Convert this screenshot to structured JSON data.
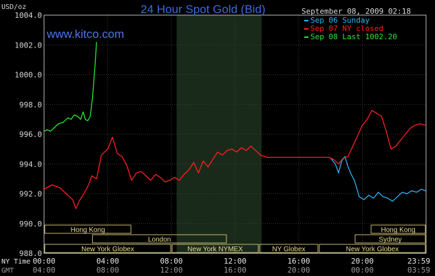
{
  "chart_data": {
    "type": "line",
    "title": "24 Hour Spot Gold (Bid)",
    "ylabel": "USD/oz",
    "ylim": [
      988.0,
      1004.0
    ],
    "yticks": [
      "1004.0",
      "1002.0",
      "1000.0",
      "998.0",
      "996.0",
      "994.0",
      "992.0",
      "990.0",
      "988.0"
    ],
    "timestamp": "September 08, 2009 02:18",
    "watermark": "www.kitco.com",
    "x_axis_rows": [
      {
        "label": "NY Time",
        "ticks": [
          "00:00",
          "04:00",
          "08:00",
          "12:00",
          "16:00",
          "20:00",
          "23:59"
        ]
      },
      {
        "label": "GMT",
        "ticks": [
          "04:00",
          "08:00",
          "12:00",
          "16:00",
          "20:00",
          "00:00",
          "03:59"
        ]
      }
    ],
    "legend": [
      {
        "name": "Sep 06 Sunday",
        "color": "#29b6f6"
      },
      {
        "name": "Sep 07 NY closed",
        "color": "#ff2020"
      },
      {
        "name": "Sep 08 Last 1002.20",
        "color": "#2ee82e"
      }
    ],
    "sessions": [
      {
        "name": "Hong Kong",
        "row": 0,
        "start": 0.0,
        "end": 5.5
      },
      {
        "name": "Hong Kong",
        "row": 0,
        "start": 20.5,
        "end": 24.0
      },
      {
        "name": "London",
        "row": 1,
        "start": 3.0,
        "end": 11.5
      },
      {
        "name": "Sydney",
        "row": 1,
        "start": 19.5,
        "end": 24.0
      },
      {
        "name": "New York Globex",
        "row": 2,
        "start": 0.0,
        "end": 8.0
      },
      {
        "name": "New York NYMEX",
        "row": 2,
        "start": 8.0,
        "end": 13.5
      },
      {
        "name": "NY Globex",
        "row": 2,
        "start": 13.5,
        "end": 17.25
      },
      {
        "name": "New York Globex",
        "row": 2,
        "start": 17.25,
        "end": 24.0
      }
    ],
    "highlight_range": [
      8.33,
      13.67
    ],
    "series": [
      {
        "name": "Sep 06 Sunday",
        "color": "#29b6f6",
        "x": [
          18.0,
          18.3,
          18.5,
          18.7,
          18.9,
          19.1,
          19.3,
          19.5,
          19.8,
          20.1,
          20.4,
          20.7,
          21.0,
          21.3,
          21.6,
          21.9,
          22.2,
          22.5,
          22.8,
          23.1,
          23.4,
          23.7,
          23.99
        ],
        "y": [
          994.4,
          994.0,
          993.4,
          994.2,
          994.5,
          993.8,
          993.3,
          992.9,
          991.8,
          991.6,
          991.9,
          991.7,
          992.1,
          991.8,
          991.7,
          991.5,
          991.8,
          992.1,
          992.0,
          992.2,
          992.1,
          992.3,
          992.2
        ]
      },
      {
        "name": "Sep 07 NY closed",
        "color": "#ff2020",
        "x": [
          0.0,
          0.5,
          1.0,
          1.5,
          1.8,
          2.0,
          2.2,
          2.5,
          2.8,
          3.0,
          3.3,
          3.6,
          4.0,
          4.3,
          4.6,
          4.9,
          5.2,
          5.5,
          5.8,
          6.1,
          6.4,
          6.7,
          7.0,
          7.3,
          7.6,
          7.9,
          8.2,
          8.5,
          8.8,
          9.1,
          9.4,
          9.7,
          10.0,
          10.3,
          10.6,
          10.9,
          11.2,
          11.5,
          11.8,
          12.1,
          12.4,
          12.7,
          13.0,
          13.3,
          13.6,
          14.0,
          15.0,
          16.0,
          17.0,
          17.9,
          18.2,
          18.5,
          18.8,
          19.1,
          19.4,
          19.7,
          20.0,
          20.3,
          20.6,
          20.9,
          21.2,
          21.5,
          21.8,
          22.1,
          22.4,
          22.7,
          23.0,
          23.3,
          23.6,
          23.99
        ],
        "y": [
          992.3,
          992.6,
          992.4,
          991.9,
          991.6,
          991.0,
          991.5,
          992.0,
          992.6,
          993.2,
          993.0,
          994.6,
          995.0,
          995.8,
          994.7,
          994.5,
          993.9,
          992.9,
          993.4,
          993.5,
          993.2,
          992.9,
          993.3,
          993.1,
          992.8,
          992.9,
          993.1,
          992.9,
          993.3,
          993.6,
          994.1,
          993.4,
          994.2,
          993.8,
          994.3,
          994.8,
          994.6,
          994.9,
          995.0,
          994.8,
          995.1,
          994.9,
          995.2,
          994.9,
          994.6,
          994.45,
          994.45,
          994.45,
          994.45,
          994.45,
          994.3,
          994.0,
          994.4,
          994.5,
          995.2,
          995.9,
          996.6,
          997.0,
          997.6,
          997.4,
          997.2,
          996.2,
          995.0,
          995.2,
          995.6,
          996.0,
          996.4,
          996.6,
          996.7,
          996.6
        ]
      },
      {
        "name": "Sep 08 Last 1002.20",
        "color": "#2ee82e",
        "x": [
          0.0,
          0.2,
          0.4,
          0.6,
          0.9,
          1.2,
          1.5,
          1.7,
          1.9,
          2.1,
          2.3,
          2.45,
          2.6,
          2.75,
          2.9,
          3.05,
          3.2,
          3.3
        ],
        "y": [
          996.2,
          996.3,
          996.2,
          996.4,
          996.7,
          996.8,
          997.1,
          997.0,
          997.3,
          997.2,
          997.0,
          997.5,
          997.0,
          996.9,
          997.2,
          998.5,
          1000.6,
          1002.2
        ]
      }
    ]
  }
}
